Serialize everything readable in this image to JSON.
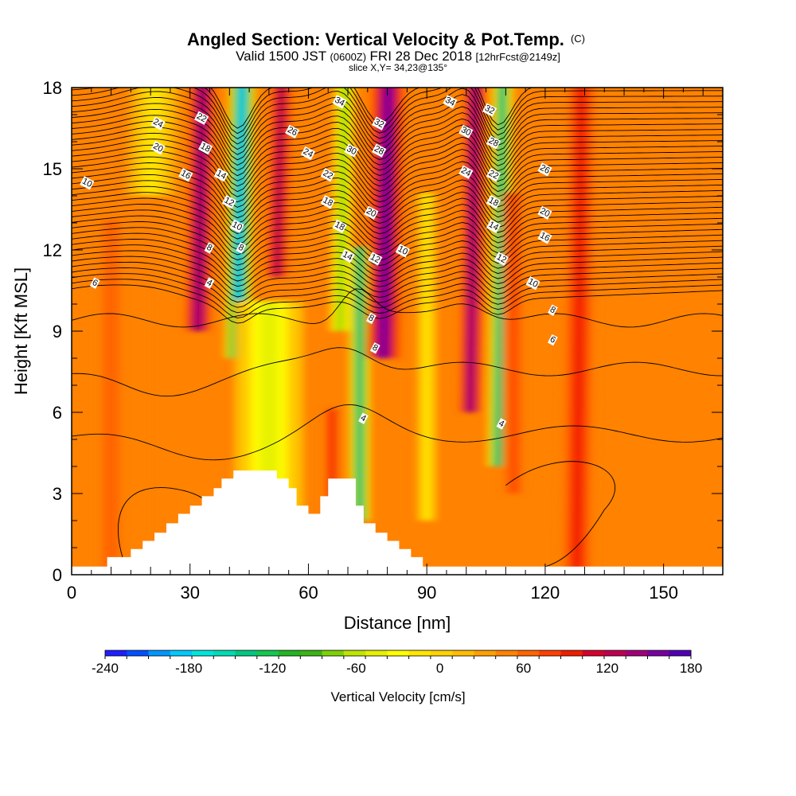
{
  "titles": {
    "main_prefix": "Angled Section: Vertical Velocity & Pot.Temp.",
    "main_mark": "(C)",
    "sub_valid": "Valid 1500 JST",
    "sub_zulu": "(0600Z)",
    "sub_date": "FRI 28 Dec 2018",
    "sub_fcst": "[12hrFcst@2149z]",
    "slice": "slice X,Y= 34,23@135°"
  },
  "chart_data": {
    "type": "heatmap",
    "xlabel": "Distance [nm]",
    "ylabel": "Height [Kft MSL]",
    "xlim": [
      0,
      165
    ],
    "ylim": [
      0,
      18
    ],
    "xticks": [
      0,
      30,
      60,
      90,
      120,
      150
    ],
    "yticks": [
      0,
      3,
      6,
      9,
      12,
      15,
      18
    ],
    "background_vertical_velocity": 30,
    "vertical_velocity_bands": [
      {
        "x_center": 10,
        "width": 16,
        "value": 45,
        "z_bottom": 0,
        "z_top": 13
      },
      {
        "x_center": 32,
        "width": 6,
        "value": 130,
        "z_bottom": 9,
        "z_top": 18
      },
      {
        "x_center": 42,
        "width": 6,
        "value": -190,
        "z_bottom": 8,
        "z_top": 18
      },
      {
        "x_center": 50,
        "width": 16,
        "value": -60,
        "z_bottom": 1.5,
        "z_top": 10
      },
      {
        "x_center": 52,
        "width": 5,
        "value": 110,
        "z_bottom": 11,
        "z_top": 18
      },
      {
        "x_center": 66,
        "width": 4,
        "value": 80,
        "z_bottom": 2,
        "z_top": 6
      },
      {
        "x_center": 68,
        "width": 5,
        "value": -90,
        "z_bottom": 9,
        "z_top": 18
      },
      {
        "x_center": 73,
        "width": 5,
        "value": -140,
        "z_bottom": 2,
        "z_top": 12
      },
      {
        "x_center": 79,
        "width": 8,
        "value": 135,
        "z_bottom": 8,
        "z_top": 18
      },
      {
        "x_center": 90,
        "width": 5,
        "value": -20,
        "z_bottom": 2,
        "z_top": 14
      },
      {
        "x_center": 101,
        "width": 5,
        "value": 130,
        "z_bottom": 6,
        "z_top": 18
      },
      {
        "x_center": 108,
        "width": 5,
        "value": -150,
        "z_bottom": 4,
        "z_top": 18
      },
      {
        "x_center": 112,
        "width": 5,
        "value": 60,
        "z_bottom": 3,
        "z_top": 14
      },
      {
        "x_center": 128,
        "width": 8,
        "value": 80,
        "z_bottom": 0,
        "z_top": 18
      },
      {
        "x_center": 20,
        "width": 12,
        "value": -30,
        "z_bottom": 14,
        "z_top": 18
      }
    ],
    "terrain": [
      [
        0,
        0.3
      ],
      [
        9,
        0.3
      ],
      [
        9,
        0.65
      ],
      [
        15,
        0.65
      ],
      [
        15,
        0.95
      ],
      [
        18,
        0.95
      ],
      [
        18,
        1.25
      ],
      [
        21,
        1.25
      ],
      [
        21,
        1.55
      ],
      [
        24,
        1.55
      ],
      [
        24,
        1.9
      ],
      [
        27,
        1.9
      ],
      [
        27,
        2.25
      ],
      [
        30,
        2.25
      ],
      [
        30,
        2.55
      ],
      [
        33,
        2.55
      ],
      [
        33,
        2.9
      ],
      [
        36,
        2.9
      ],
      [
        36,
        3.2
      ],
      [
        38,
        3.2
      ],
      [
        38,
        3.55
      ],
      [
        41,
        3.55
      ],
      [
        41,
        3.85
      ],
      [
        52,
        3.85
      ],
      [
        52,
        3.55
      ],
      [
        55,
        3.55
      ],
      [
        55,
        3.2
      ],
      [
        57,
        3.2
      ],
      [
        57,
        2.55
      ],
      [
        60,
        2.55
      ],
      [
        60,
        2.25
      ],
      [
        63,
        2.25
      ],
      [
        63,
        2.9
      ],
      [
        65,
        2.9
      ],
      [
        65,
        3.55
      ],
      [
        72,
        3.55
      ],
      [
        72,
        2.55
      ],
      [
        74,
        2.55
      ],
      [
        74,
        1.9
      ],
      [
        77,
        1.9
      ],
      [
        77,
        1.55
      ],
      [
        80,
        1.55
      ],
      [
        80,
        1.25
      ],
      [
        83,
        1.25
      ],
      [
        83,
        0.95
      ],
      [
        86,
        0.95
      ],
      [
        86,
        0.65
      ],
      [
        89,
        0.65
      ],
      [
        89,
        0.3
      ],
      [
        165,
        0.3
      ]
    ],
    "theta_contours": {
      "base_levels": [
        4,
        6,
        8
      ],
      "stratified_levels": [
        10,
        12,
        14,
        16,
        18,
        20,
        22,
        24,
        26,
        28,
        30,
        32,
        34
      ],
      "labels": [
        {
          "text": "24",
          "x": 22,
          "z": 16.7
        },
        {
          "text": "22",
          "x": 33,
          "z": 16.9
        },
        {
          "text": "20",
          "x": 22,
          "z": 15.8
        },
        {
          "text": "18",
          "x": 34,
          "z": 15.8
        },
        {
          "text": "16",
          "x": 29,
          "z": 14.8
        },
        {
          "text": "14",
          "x": 38,
          "z": 14.8
        },
        {
          "text": "10",
          "x": 4,
          "z": 14.5
        },
        {
          "text": "12",
          "x": 40,
          "z": 13.8
        },
        {
          "text": "10",
          "x": 42,
          "z": 12.9
        },
        {
          "text": "8",
          "x": 35,
          "z": 12.1
        },
        {
          "text": "8",
          "x": 43,
          "z": 12.1
        },
        {
          "text": "6",
          "x": 6,
          "z": 10.8
        },
        {
          "text": "4",
          "x": 35,
          "z": 10.8
        },
        {
          "text": "26",
          "x": 56,
          "z": 16.4
        },
        {
          "text": "24",
          "x": 60,
          "z": 15.6
        },
        {
          "text": "34",
          "x": 68,
          "z": 17.5
        },
        {
          "text": "32",
          "x": 78,
          "z": 16.7
        },
        {
          "text": "30",
          "x": 71,
          "z": 15.7
        },
        {
          "text": "28",
          "x": 78,
          "z": 15.7
        },
        {
          "text": "22",
          "x": 65,
          "z": 14.8
        },
        {
          "text": "18",
          "x": 65,
          "z": 13.8
        },
        {
          "text": "20",
          "x": 76,
          "z": 13.4
        },
        {
          "text": "18",
          "x": 68,
          "z": 12.9
        },
        {
          "text": "14",
          "x": 70,
          "z": 11.8
        },
        {
          "text": "12",
          "x": 77,
          "z": 11.7
        },
        {
          "text": "10",
          "x": 84,
          "z": 12.0
        },
        {
          "text": "8",
          "x": 76,
          "z": 9.5
        },
        {
          "text": "8",
          "x": 77,
          "z": 8.4
        },
        {
          "text": "4",
          "x": 74,
          "z": 5.8
        },
        {
          "text": "34",
          "x": 96,
          "z": 17.5
        },
        {
          "text": "32",
          "x": 106,
          "z": 17.2
        },
        {
          "text": "30",
          "x": 100,
          "z": 16.4
        },
        {
          "text": "28",
          "x": 107,
          "z": 16.0
        },
        {
          "text": "24",
          "x": 100,
          "z": 14.9
        },
        {
          "text": "22",
          "x": 107,
          "z": 14.8
        },
        {
          "text": "26",
          "x": 120,
          "z": 15.0
        },
        {
          "text": "18",
          "x": 107,
          "z": 13.8
        },
        {
          "text": "20",
          "x": 120,
          "z": 13.4
        },
        {
          "text": "14",
          "x": 107,
          "z": 12.9
        },
        {
          "text": "16",
          "x": 120,
          "z": 12.5
        },
        {
          "text": "12",
          "x": 109,
          "z": 11.7
        },
        {
          "text": "10",
          "x": 117,
          "z": 10.8
        },
        {
          "text": "8",
          "x": 122,
          "z": 9.8
        },
        {
          "text": "6",
          "x": 122,
          "z": 8.7
        },
        {
          "text": "4",
          "x": 109,
          "z": 5.6
        }
      ]
    },
    "colorbar": {
      "title": "Vertical Velocity [cm/s]",
      "min": -240,
      "max": 180,
      "step": 15,
      "tick_labels": [
        "-240",
        "-180",
        "-120",
        "-60",
        "0",
        "60",
        "120",
        "180"
      ],
      "colors": [
        "#1E1EFF",
        "#0050FF",
        "#0096FF",
        "#00C8FF",
        "#00E6DC",
        "#00DCB4",
        "#00C882",
        "#14C850",
        "#23B423",
        "#3CB414",
        "#7DD205",
        "#BEE600",
        "#E6F000",
        "#FFFF00",
        "#FFE600",
        "#FFD200",
        "#FFBE00",
        "#FFA000",
        "#FF8200",
        "#FF6400",
        "#FF4000",
        "#F01E00",
        "#D7002D",
        "#BE0050",
        "#A00078",
        "#7800A0",
        "#5000B4"
      ]
    }
  }
}
